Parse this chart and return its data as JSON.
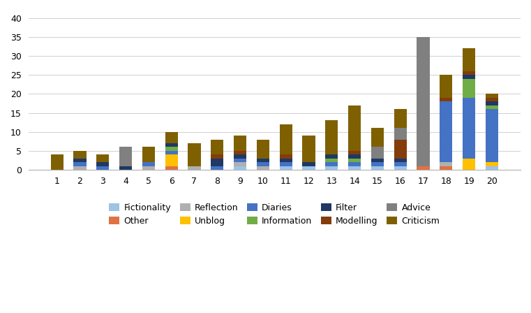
{
  "categories": [
    1,
    2,
    3,
    4,
    5,
    6,
    7,
    8,
    9,
    10,
    11,
    12,
    13,
    14,
    15,
    16,
    17,
    18,
    19,
    20
  ],
  "series_order": [
    "Fictionality",
    "Other",
    "Reflection",
    "Unblog",
    "Diaries",
    "Information",
    "Filter",
    "Modelling",
    "Advice",
    "Criticism"
  ],
  "series": {
    "Fictionality": [
      0,
      0,
      0,
      0,
      0,
      0,
      0,
      0,
      1,
      0,
      1,
      1,
      1,
      1,
      1,
      1,
      0,
      0,
      0,
      1
    ],
    "Other": [
      0,
      0,
      0,
      0,
      0,
      1,
      0,
      0,
      0,
      0,
      0,
      0,
      0,
      0,
      0,
      0,
      1,
      1,
      0,
      0
    ],
    "Reflection": [
      0,
      1,
      0,
      0,
      1,
      0,
      1,
      0,
      1,
      1,
      0,
      0,
      0,
      0,
      0,
      0,
      0,
      1,
      0,
      0
    ],
    "Unblog": [
      0,
      0,
      0,
      0,
      0,
      3,
      0,
      0,
      0,
      0,
      0,
      0,
      0,
      0,
      0,
      0,
      0,
      0,
      3,
      1
    ],
    "Diaries": [
      0,
      1,
      1,
      0,
      1,
      1,
      0,
      1,
      1,
      1,
      1,
      0,
      1,
      1,
      1,
      1,
      0,
      16,
      16,
      14
    ],
    "Information": [
      0,
      0,
      0,
      0,
      0,
      1,
      0,
      0,
      0,
      0,
      0,
      0,
      1,
      1,
      0,
      0,
      0,
      0,
      5,
      1
    ],
    "Filter": [
      0,
      1,
      1,
      1,
      0,
      1,
      0,
      2,
      1,
      1,
      1,
      1,
      1,
      1,
      1,
      1,
      0,
      0,
      1,
      1
    ],
    "Modelling": [
      0,
      0,
      0,
      0,
      0,
      0,
      0,
      1,
      1,
      0,
      1,
      0,
      0,
      1,
      0,
      5,
      0,
      1,
      1,
      1
    ],
    "Advice": [
      0,
      0,
      0,
      5,
      0,
      0,
      0,
      0,
      0,
      0,
      0,
      0,
      0,
      0,
      3,
      3,
      34,
      0,
      0,
      0
    ],
    "Criticism": [
      4,
      2,
      2,
      0,
      4,
      3,
      6,
      4,
      4,
      5,
      8,
      7,
      9,
      12,
      5,
      5,
      0,
      6,
      6,
      1
    ]
  },
  "colors": {
    "Fictionality": "#9dc3e6",
    "Other": "#e07242",
    "Reflection": "#b0b0b0",
    "Unblog": "#ffc000",
    "Diaries": "#4472c4",
    "Information": "#70ad47",
    "Filter": "#1f3864",
    "Modelling": "#843c0c",
    "Advice": "#808080",
    "Criticism": "#7f6000"
  },
  "ylim": [
    0,
    42
  ],
  "yticks": [
    0,
    5,
    10,
    15,
    20,
    25,
    30,
    35,
    40
  ],
  "background_color": "#ffffff",
  "grid_color": "#d0d0d0"
}
